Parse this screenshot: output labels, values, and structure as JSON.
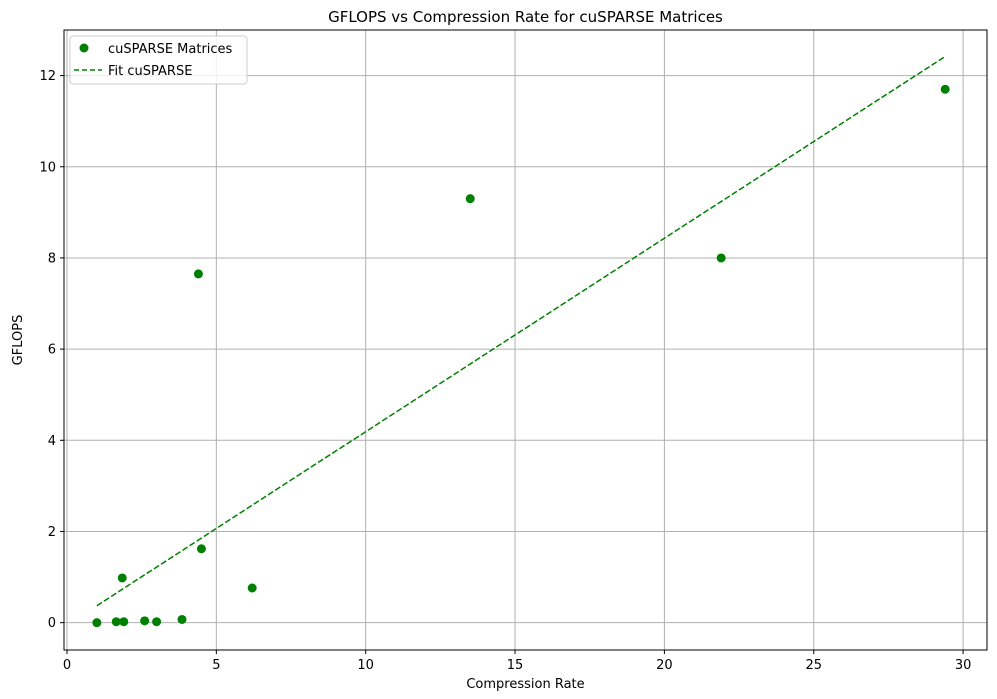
{
  "chart_data": {
    "type": "scatter",
    "title": "GFLOPS vs Compression Rate for cuSPARSE Matrices",
    "xlabel": "Compression Rate",
    "ylabel": "GFLOPS",
    "xlim": [
      -0.1,
      30.8
    ],
    "ylim": [
      -0.6,
      13.0
    ],
    "xticks": [
      0,
      5,
      10,
      15,
      20,
      25,
      30
    ],
    "yticks": [
      0,
      2,
      4,
      6,
      8,
      10,
      12
    ],
    "grid": true,
    "legend_position": "top-left",
    "colors": {
      "series": "#008000",
      "grid": "#b0b0b0"
    },
    "series": [
      {
        "name": "cuSPARSE Matrices",
        "kind": "scatter",
        "points": [
          {
            "x": 1.0,
            "y": 0.0
          },
          {
            "x": 1.65,
            "y": 0.02
          },
          {
            "x": 1.9,
            "y": 0.02
          },
          {
            "x": 1.85,
            "y": 0.98
          },
          {
            "x": 2.6,
            "y": 0.04
          },
          {
            "x": 3.0,
            "y": 0.02
          },
          {
            "x": 3.85,
            "y": 0.07
          },
          {
            "x": 4.4,
            "y": 7.65
          },
          {
            "x": 4.5,
            "y": 1.62
          },
          {
            "x": 6.2,
            "y": 0.76
          },
          {
            "x": 13.5,
            "y": 9.3
          },
          {
            "x": 21.9,
            "y": 8.0
          },
          {
            "x": 29.4,
            "y": 11.7
          }
        ]
      },
      {
        "name": "Fit cuSPARSE",
        "kind": "line",
        "style": "dashed",
        "points": [
          {
            "x": 1.0,
            "y": 0.37
          },
          {
            "x": 29.4,
            "y": 12.42
          }
        ]
      }
    ]
  }
}
